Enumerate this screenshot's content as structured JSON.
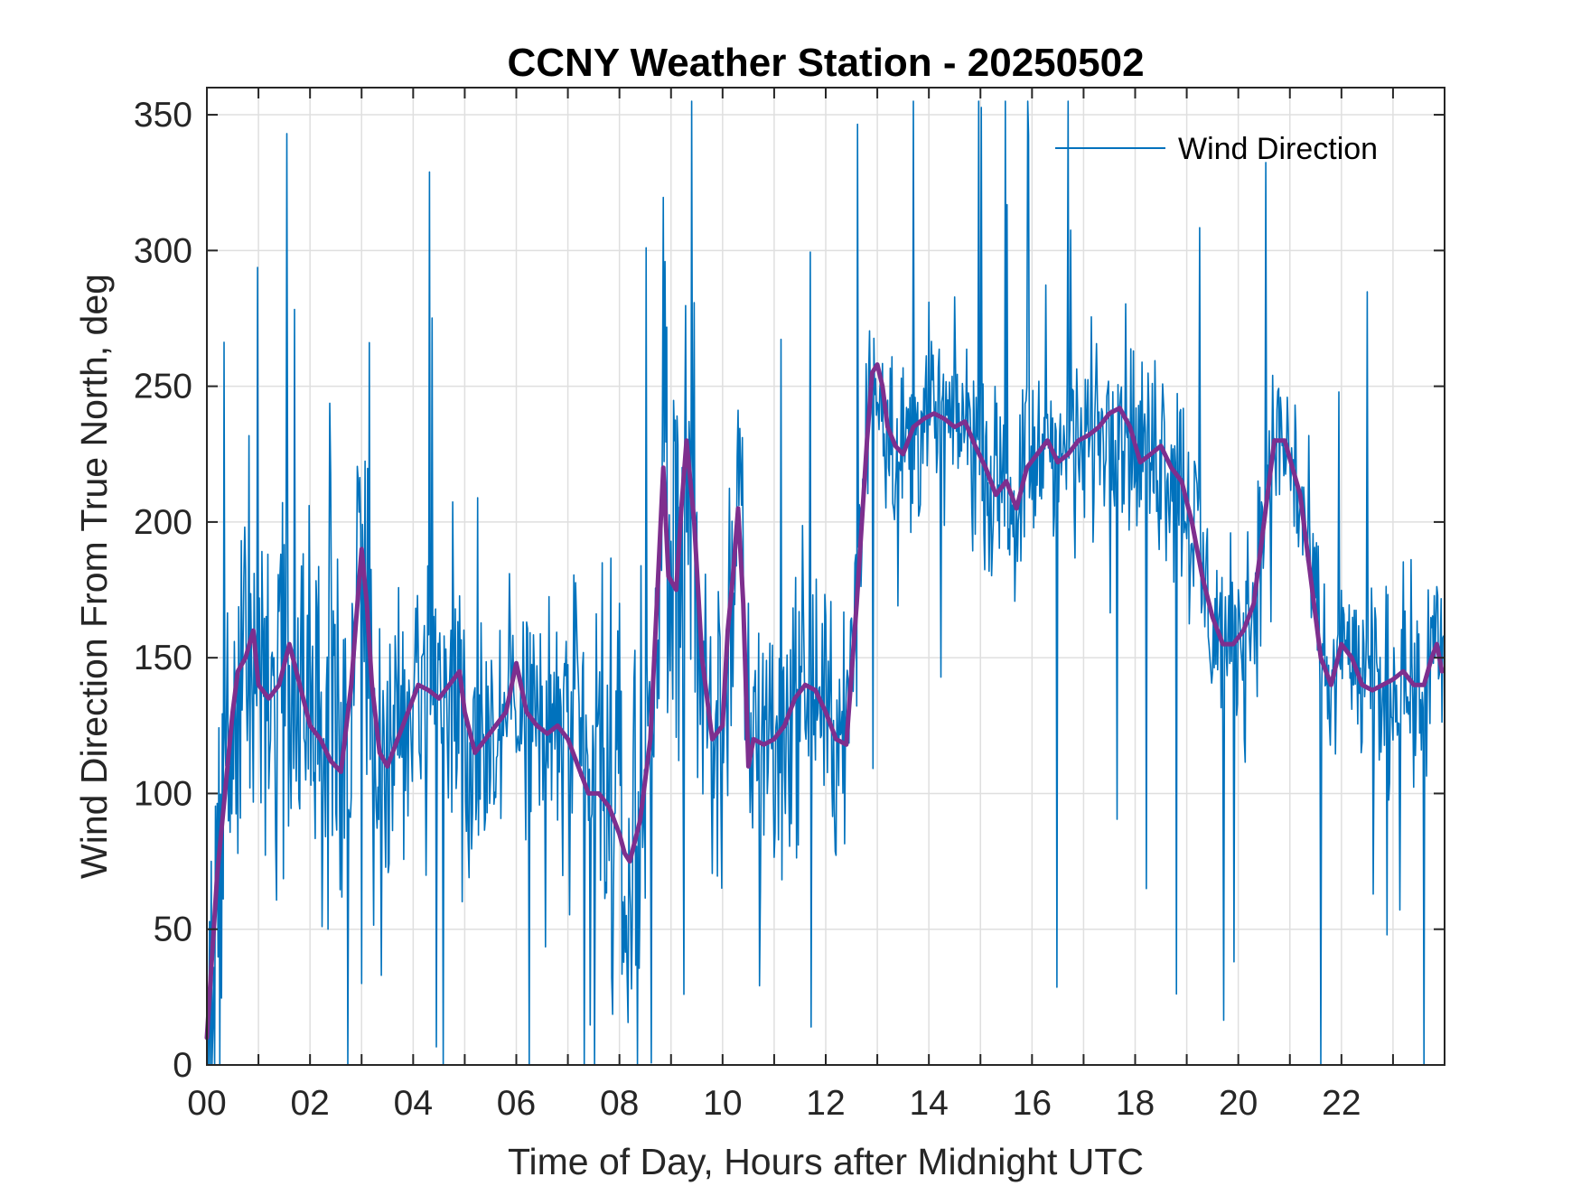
{
  "chart_data": {
    "type": "line",
    "title": "CCNY Weather Station - 20250502",
    "xlabel": "Time of Day, Hours after Midnight UTC",
    "ylabel": "Wind Direction From True North, deg",
    "xlim": [
      0,
      24
    ],
    "ylim": [
      0,
      360
    ],
    "x_ticks": [
      0,
      2,
      4,
      6,
      8,
      10,
      12,
      14,
      16,
      18,
      20,
      22
    ],
    "x_tick_labels": [
      "00",
      "02",
      "04",
      "06",
      "08",
      "10",
      "12",
      "14",
      "16",
      "18",
      "20",
      "22"
    ],
    "y_ticks": [
      0,
      50,
      100,
      150,
      200,
      250,
      300,
      350
    ],
    "y_tick_labels": [
      "0",
      "50",
      "100",
      "150",
      "200",
      "250",
      "300",
      "350"
    ],
    "grid": true,
    "legend": {
      "position": "top-right",
      "entries": [
        "Wind Direction"
      ]
    },
    "colors": {
      "raw": "#0072BD",
      "smoothed": "#7E2F8E",
      "axes": "#262626",
      "grid": "#dfdfdf"
    },
    "series": [
      {
        "name": "Wind Direction",
        "style": "raw-noisy",
        "note": "Raw samples (~1 per minute); drawn as noisy trace around the smoothed trend with spread below",
        "spread": [
          [
            0,
            70
          ],
          [
            3,
            75
          ],
          [
            6,
            50
          ],
          [
            8,
            90
          ],
          [
            10,
            80
          ],
          [
            12.5,
            45
          ],
          [
            13,
            40
          ],
          [
            16,
            40
          ],
          [
            19,
            45
          ],
          [
            21,
            40
          ],
          [
            22,
            35
          ],
          [
            24,
            45
          ]
        ],
        "x": [
          0,
          1,
          2,
          3,
          4,
          5,
          6,
          7,
          8,
          9,
          10,
          11,
          12,
          13,
          14,
          15,
          16,
          17,
          18,
          19,
          20,
          21,
          22,
          23,
          24
        ]
      },
      {
        "name": "",
        "style": "smoothed",
        "x": [
          0,
          0.1,
          0.2,
          0.35,
          0.5,
          0.6,
          0.75,
          0.9,
          1.0,
          1.2,
          1.4,
          1.6,
          1.8,
          2.0,
          2.2,
          2.4,
          2.6,
          2.8,
          2.9,
          3.0,
          3.1,
          3.2,
          3.35,
          3.5,
          3.7,
          3.9,
          4.1,
          4.3,
          4.5,
          4.7,
          4.9,
          5.0,
          5.2,
          5.4,
          5.6,
          5.8,
          6.0,
          6.2,
          6.4,
          6.6,
          6.8,
          7.0,
          7.2,
          7.4,
          7.6,
          7.8,
          8.0,
          8.1,
          8.2,
          8.4,
          8.6,
          8.75,
          8.85,
          8.95,
          9.1,
          9.2,
          9.3,
          9.45,
          9.6,
          9.8,
          10.0,
          10.1,
          10.2,
          10.3,
          10.4,
          10.5,
          10.6,
          10.8,
          11.0,
          11.2,
          11.4,
          11.6,
          11.8,
          12.0,
          12.2,
          12.4,
          12.6,
          12.8,
          12.9,
          13.0,
          13.1,
          13.2,
          13.35,
          13.5,
          13.7,
          13.9,
          14.1,
          14.3,
          14.5,
          14.7,
          14.9,
          15.1,
          15.3,
          15.5,
          15.7,
          15.9,
          16.1,
          16.3,
          16.5,
          16.7,
          16.9,
          17.1,
          17.3,
          17.5,
          17.7,
          17.9,
          18.1,
          18.3,
          18.5,
          18.7,
          18.9,
          19.1,
          19.3,
          19.5,
          19.7,
          19.9,
          20.1,
          20.3,
          20.5,
          20.7,
          20.9,
          21.05,
          21.2,
          21.4,
          21.6,
          21.8,
          22.0,
          22.2,
          22.4,
          22.6,
          22.8,
          23.0,
          23.2,
          23.4,
          23.6,
          23.75,
          23.85,
          23.95
        ],
        "values": [
          10,
          40,
          70,
          100,
          130,
          145,
          150,
          160,
          140,
          135,
          140,
          155,
          140,
          125,
          120,
          112,
          108,
          140,
          165,
          190,
          170,
          140,
          115,
          110,
          120,
          130,
          140,
          138,
          135,
          140,
          145,
          130,
          115,
          120,
          125,
          130,
          148,
          130,
          125,
          122,
          125,
          120,
          110,
          100,
          100,
          95,
          85,
          78,
          75,
          90,
          120,
          180,
          220,
          180,
          175,
          205,
          230,
          200,
          150,
          120,
          125,
          160,
          180,
          205,
          170,
          110,
          120,
          118,
          120,
          125,
          135,
          140,
          138,
          130,
          120,
          118,
          170,
          230,
          255,
          258,
          250,
          235,
          228,
          225,
          235,
          238,
          240,
          238,
          235,
          237,
          228,
          220,
          210,
          215,
          205,
          220,
          225,
          230,
          222,
          225,
          230,
          232,
          235,
          240,
          242,
          235,
          222,
          225,
          228,
          220,
          215,
          200,
          180,
          165,
          155,
          155,
          160,
          170,
          200,
          230,
          230,
          220,
          210,
          180,
          150,
          140,
          155,
          150,
          140,
          138,
          140,
          142,
          145,
          140,
          140,
          150,
          155,
          145
        ]
      }
    ]
  }
}
